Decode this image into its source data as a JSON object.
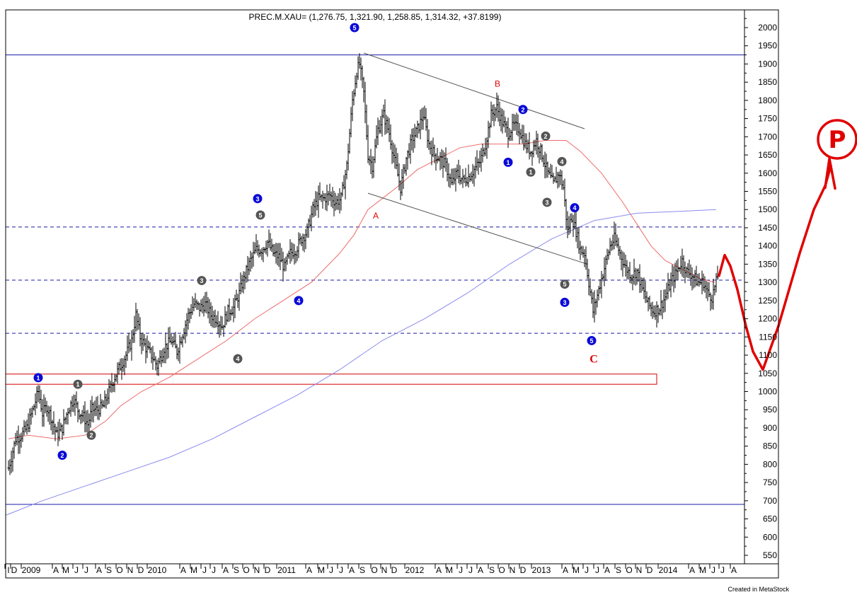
{
  "chart_data": {
    "type": "ohlc",
    "title": "PREC.M.XAU= (1,276.75, 1,321.90, 1,258.85, 1,314.32, +37.8199)",
    "credit": "Created in MetaStock",
    "ylim": [
      520,
      2040
    ],
    "yticks": [
      2000,
      1950,
      1900,
      1850,
      1800,
      1750,
      1700,
      1650,
      1600,
      1550,
      1500,
      1450,
      1400,
      1350,
      1300,
      1250,
      1200,
      1150,
      1100,
      1050,
      1000,
      950,
      900,
      850,
      800,
      750,
      700,
      650,
      600,
      550
    ],
    "x_labels": [
      {
        "label": "l",
        "x": 12
      },
      {
        "label": "D",
        "x": 20
      },
      {
        "label": "2009",
        "x": 44
      },
      {
        "label": "A",
        "x": 79
      },
      {
        "label": "M",
        "x": 93
      },
      {
        "label": "J",
        "x": 108
      },
      {
        "label": "J",
        "x": 122
      },
      {
        "label": "A",
        "x": 140
      },
      {
        "label": "S",
        "x": 154
      },
      {
        "label": "O",
        "x": 169
      },
      {
        "label": "N",
        "x": 184
      },
      {
        "label": "D",
        "x": 199
      },
      {
        "label": "2010",
        "x": 222
      },
      {
        "label": "A",
        "x": 259
      },
      {
        "label": "M",
        "x": 274
      },
      {
        "label": "J",
        "x": 289
      },
      {
        "label": "J",
        "x": 302
      },
      {
        "label": "A",
        "x": 319
      },
      {
        "label": "S",
        "x": 334
      },
      {
        "label": "O",
        "x": 348
      },
      {
        "label": "N",
        "x": 363
      },
      {
        "label": "D",
        "x": 378
      },
      {
        "label": "2011",
        "x": 405
      },
      {
        "label": "A",
        "x": 437
      },
      {
        "label": "M",
        "x": 454
      },
      {
        "label": "J",
        "x": 468
      },
      {
        "label": "J",
        "x": 482
      },
      {
        "label": "A",
        "x": 497
      },
      {
        "label": "S",
        "x": 512
      },
      {
        "label": "O",
        "x": 529
      },
      {
        "label": "N",
        "x": 543
      },
      {
        "label": "D",
        "x": 557
      },
      {
        "label": "2012",
        "x": 586
      },
      {
        "label": "A",
        "x": 620
      },
      {
        "label": "M",
        "x": 635
      },
      {
        "label": "J",
        "x": 651
      },
      {
        "label": "J",
        "x": 665
      },
      {
        "label": "A",
        "x": 679
      },
      {
        "label": "S",
        "x": 695
      },
      {
        "label": "O",
        "x": 709
      },
      {
        "label": "N",
        "x": 724
      },
      {
        "label": "D",
        "x": 739
      },
      {
        "label": "2013",
        "x": 765
      },
      {
        "label": "A",
        "x": 799
      },
      {
        "label": "M",
        "x": 814
      },
      {
        "label": "J",
        "x": 829
      },
      {
        "label": "J",
        "x": 844
      },
      {
        "label": "A",
        "x": 858
      },
      {
        "label": "S",
        "x": 874
      },
      {
        "label": "O",
        "x": 889
      },
      {
        "label": "N",
        "x": 903
      },
      {
        "label": "D",
        "x": 918
      },
      {
        "label": "2014",
        "x": 944
      },
      {
        "label": "A",
        "x": 978
      },
      {
        "label": "M",
        "x": 993
      },
      {
        "label": "J",
        "x": 1008
      },
      {
        "label": "J",
        "x": 1021
      },
      {
        "label": "A",
        "x": 1037
      }
    ],
    "price_path": [
      [
        12,
        790
      ],
      [
        16,
        820
      ],
      [
        22,
        870
      ],
      [
        30,
        880
      ],
      [
        38,
        900
      ],
      [
        48,
        960
      ],
      [
        54,
        1000
      ],
      [
        60,
        940
      ],
      [
        66,
        960
      ],
      [
        72,
        930
      ],
      [
        80,
        880
      ],
      [
        88,
        900
      ],
      [
        96,
        950
      ],
      [
        104,
        980
      ],
      [
        110,
        950
      ],
      [
        118,
        930
      ],
      [
        124,
        910
      ],
      [
        130,
        950
      ],
      [
        138,
        950
      ],
      [
        146,
        960
      ],
      [
        154,
        1000
      ],
      [
        162,
        1040
      ],
      [
        170,
        1070
      ],
      [
        178,
        1100
      ],
      [
        186,
        1140
      ],
      [
        192,
        1210
      ],
      [
        198,
        1150
      ],
      [
        206,
        1120
      ],
      [
        214,
        1100
      ],
      [
        222,
        1070
      ],
      [
        232,
        1120
      ],
      [
        242,
        1140
      ],
      [
        250,
        1110
      ],
      [
        258,
        1160
      ],
      [
        266,
        1210
      ],
      [
        274,
        1240
      ],
      [
        282,
        1230
      ],
      [
        290,
        1240
      ],
      [
        298,
        1210
      ],
      [
        306,
        1200
      ],
      [
        314,
        1180
      ],
      [
        322,
        1220
      ],
      [
        330,
        1230
      ],
      [
        338,
        1270
      ],
      [
        346,
        1320
      ],
      [
        354,
        1360
      ],
      [
        362,
        1390
      ],
      [
        370,
        1390
      ],
      [
        378,
        1410
      ],
      [
        386,
        1380
      ],
      [
        394,
        1370
      ],
      [
        402,
        1340
      ],
      [
        410,
        1380
      ],
      [
        418,
        1390
      ],
      [
        426,
        1420
      ],
      [
        434,
        1440
      ],
      [
        442,
        1500
      ],
      [
        450,
        1530
      ],
      [
        458,
        1530
      ],
      [
        466,
        1540
      ],
      [
        474,
        1520
      ],
      [
        482,
        1530
      ],
      [
        490,
        1620
      ],
      [
        498,
        1800
      ],
      [
        504,
        1880
      ],
      [
        508,
        1900
      ],
      [
        514,
        1820
      ],
      [
        520,
        1650
      ],
      [
        526,
        1620
      ],
      [
        534,
        1720
      ],
      [
        542,
        1760
      ],
      [
        550,
        1710
      ],
      [
        558,
        1630
      ],
      [
        566,
        1560
      ],
      [
        574,
        1640
      ],
      [
        582,
        1690
      ],
      [
        590,
        1720
      ],
      [
        598,
        1760
      ],
      [
        606,
        1680
      ],
      [
        614,
        1650
      ],
      [
        622,
        1640
      ],
      [
        630,
        1620
      ],
      [
        638,
        1570
      ],
      [
        646,
        1600
      ],
      [
        654,
        1580
      ],
      [
        662,
        1590
      ],
      [
        670,
        1610
      ],
      [
        678,
        1630
      ],
      [
        686,
        1680
      ],
      [
        694,
        1760
      ],
      [
        702,
        1780
      ],
      [
        710,
        1740
      ],
      [
        718,
        1710
      ],
      [
        726,
        1730
      ],
      [
        734,
        1720
      ],
      [
        742,
        1680
      ],
      [
        750,
        1660
      ],
      [
        758,
        1690
      ],
      [
        766,
        1650
      ],
      [
        774,
        1600
      ],
      [
        782,
        1570
      ],
      [
        790,
        1600
      ],
      [
        796,
        1560
      ],
      [
        802,
        1440
      ],
      [
        808,
        1480
      ],
      [
        814,
        1440
      ],
      [
        820,
        1390
      ],
      [
        826,
        1380
      ],
      [
        832,
        1300
      ],
      [
        838,
        1220
      ],
      [
        846,
        1280
      ],
      [
        854,
        1340
      ],
      [
        862,
        1400
      ],
      [
        868,
        1420
      ],
      [
        876,
        1380
      ],
      [
        884,
        1340
      ],
      [
        892,
        1320
      ],
      [
        900,
        1330
      ],
      [
        908,
        1280
      ],
      [
        916,
        1240
      ],
      [
        924,
        1220
      ],
      [
        932,
        1230
      ],
      [
        940,
        1260
      ],
      [
        948,
        1300
      ],
      [
        956,
        1330
      ],
      [
        964,
        1360
      ],
      [
        970,
        1330
      ],
      [
        978,
        1320
      ],
      [
        986,
        1300
      ],
      [
        994,
        1300
      ],
      [
        1000,
        1270
      ],
      [
        1006,
        1260
      ],
      [
        1012,
        1300
      ],
      [
        1014,
        1314
      ]
    ],
    "ma_red": [
      [
        12,
        870
      ],
      [
        40,
        880
      ],
      [
        80,
        870
      ],
      [
        120,
        880
      ],
      [
        150,
        920
      ],
      [
        170,
        960
      ],
      [
        200,
        1000
      ],
      [
        240,
        1040
      ],
      [
        280,
        1090
      ],
      [
        320,
        1140
      ],
      [
        360,
        1200
      ],
      [
        400,
        1250
      ],
      [
        440,
        1300
      ],
      [
        480,
        1380
      ],
      [
        500,
        1430
      ],
      [
        520,
        1500
      ],
      [
        540,
        1530
      ],
      [
        560,
        1560
      ],
      [
        590,
        1610
      ],
      [
        620,
        1640
      ],
      [
        650,
        1670
      ],
      [
        680,
        1680
      ],
      [
        710,
        1680
      ],
      [
        740,
        1680
      ],
      [
        770,
        1690
      ],
      [
        800,
        1690
      ],
      [
        820,
        1660
      ],
      [
        850,
        1600
      ],
      [
        880,
        1520
      ],
      [
        900,
        1460
      ],
      [
        920,
        1400
      ],
      [
        940,
        1360
      ],
      [
        960,
        1340
      ],
      [
        990,
        1310
      ],
      [
        1010,
        1300
      ]
    ],
    "ma_blue": [
      [
        8,
        660
      ],
      [
        60,
        700
      ],
      [
        120,
        740
      ],
      [
        180,
        780
      ],
      [
        240,
        820
      ],
      [
        300,
        870
      ],
      [
        360,
        930
      ],
      [
        420,
        990
      ],
      [
        480,
        1060
      ],
      [
        540,
        1140
      ],
      [
        600,
        1200
      ],
      [
        660,
        1270
      ],
      [
        720,
        1350
      ],
      [
        780,
        1420
      ],
      [
        840,
        1470
      ],
      [
        900,
        1490
      ],
      [
        960,
        1495
      ],
      [
        1012,
        1500
      ]
    ],
    "h_lines": [
      {
        "price": 1925,
        "color": "#1a1aa8",
        "dash": false,
        "x1": 8,
        "x2": 1052
      },
      {
        "price": 1452,
        "color": "#1a1aa8",
        "dash": true,
        "x1": 8,
        "x2": 1052
      },
      {
        "price": 1306,
        "color": "#1a1aa8",
        "dash": true,
        "x1": 8,
        "x2": 1052
      },
      {
        "price": 1160,
        "color": "#1a1aa8",
        "dash": true,
        "x1": 8,
        "x2": 1052
      },
      {
        "price": 690,
        "color": "#1a1aa8",
        "dash": false,
        "x1": 8,
        "x2": 1052
      }
    ],
    "channel_lines": [
      {
        "x1": 514,
        "p1": 1930,
        "x2": 826,
        "p2": 1722
      },
      {
        "x1": 520,
        "p1": 1545,
        "x2": 830,
        "p2": 1350
      }
    ],
    "support_box": {
      "x1": 8,
      "x2": 928,
      "p_top": 1048,
      "p_bottom": 1020,
      "color": "#d40000"
    },
    "wave_labels": [
      {
        "t": "5",
        "x": 501,
        "p": 2000,
        "c": "#0a0ad8"
      },
      {
        "t": "3",
        "x": 364,
        "p": 1530,
        "c": "#0a0ad8"
      },
      {
        "t": "5",
        "x": 368,
        "p": 1485,
        "c": "#555555"
      },
      {
        "t": "3",
        "x": 285,
        "p": 1305,
        "c": "#555555"
      },
      {
        "t": "4",
        "x": 422,
        "p": 1250,
        "c": "#0a0ad8"
      },
      {
        "t": "4",
        "x": 336,
        "p": 1090,
        "c": "#555555"
      },
      {
        "t": "1",
        "x": 54,
        "p": 1038,
        "c": "#0a0ad8"
      },
      {
        "t": "1",
        "x": 110,
        "p": 1020,
        "c": "#555555"
      },
      {
        "t": "2",
        "x": 129,
        "p": 880,
        "c": "#555555"
      },
      {
        "t": "2",
        "x": 88,
        "p": 825,
        "c": "#0a0ad8"
      },
      {
        "t": "2",
        "x": 739,
        "p": 1775,
        "c": "#0a0ad8"
      },
      {
        "t": "2",
        "x": 771,
        "p": 1702,
        "c": "#555555"
      },
      {
        "t": "1",
        "x": 718,
        "p": 1630,
        "c": "#0a0ad8"
      },
      {
        "t": "1",
        "x": 750,
        "p": 1603,
        "c": "#555555"
      },
      {
        "t": "4",
        "x": 794,
        "p": 1632,
        "c": "#555555"
      },
      {
        "t": "3",
        "x": 773,
        "p": 1520,
        "c": "#555555"
      },
      {
        "t": "4",
        "x": 812,
        "p": 1505,
        "c": "#0a0ad8"
      },
      {
        "t": "5",
        "x": 798,
        "p": 1295,
        "c": "#555555"
      },
      {
        "t": "3",
        "x": 798,
        "p": 1245,
        "c": "#0a0ad8"
      },
      {
        "t": "5",
        "x": 836,
        "p": 1140,
        "c": "#0a0ad8"
      }
    ],
    "letter_labels": [
      {
        "t": "A",
        "x": 531,
        "p": 1475,
        "size": 12
      },
      {
        "t": "B",
        "x": 703,
        "p": 1838,
        "size": 12
      },
      {
        "t": "C",
        "x": 839,
        "p": 1080,
        "size": 16
      }
    ],
    "projection_path": [
      [
        1016,
        1318
      ],
      [
        1024,
        1375
      ],
      [
        1032,
        1345
      ],
      [
        1042,
        1280
      ],
      [
        1054,
        1180
      ],
      [
        1064,
        1110
      ],
      [
        1078,
        1060
      ],
      [
        1100,
        1180
      ],
      [
        1130,
        1380
      ],
      [
        1150,
        1500
      ],
      [
        1166,
        1565
      ],
      [
        1174,
        1620
      ]
    ],
    "projection_arrowhead": [
      [
        1166,
        1560
      ],
      [
        1172,
        1640
      ],
      [
        1180,
        1558
      ]
    ],
    "target_marker": {
      "t": "P",
      "x": 1183,
      "p": 1693,
      "r": 27
    }
  }
}
